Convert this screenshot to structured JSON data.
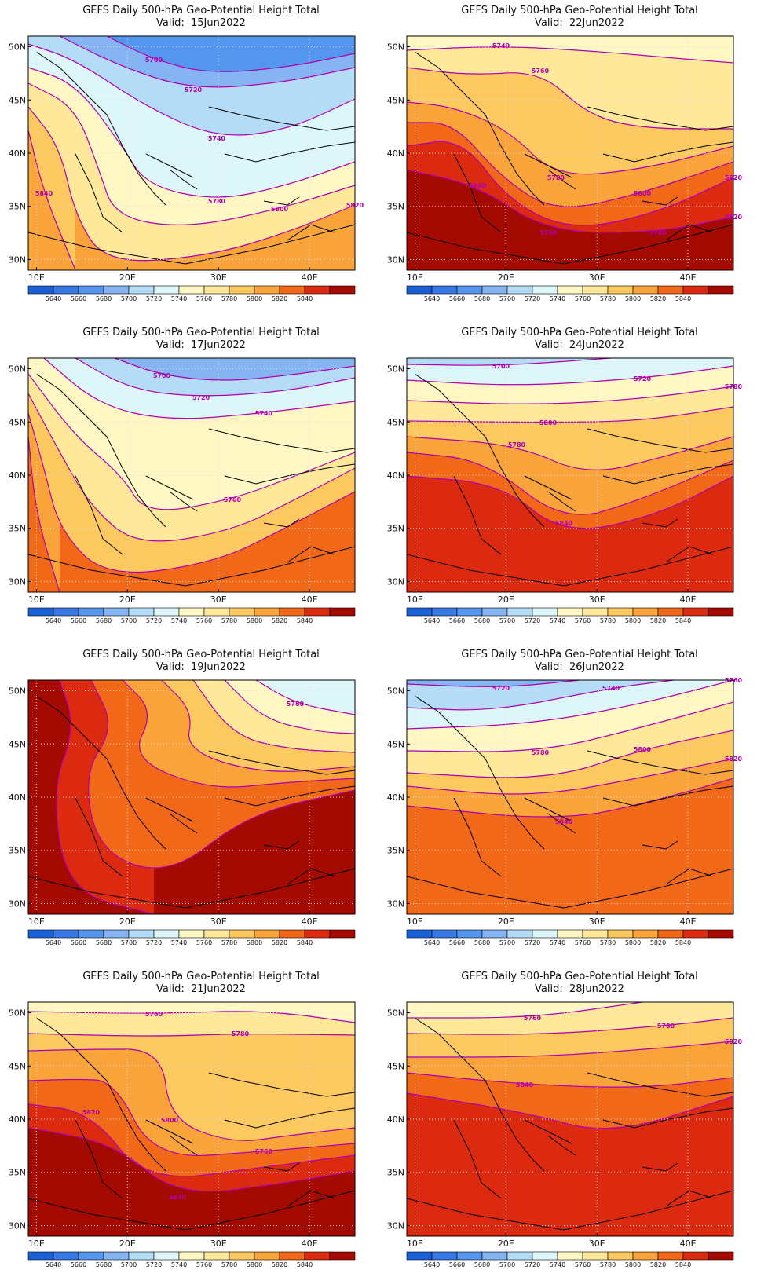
{
  "figure": {
    "colorbar": {
      "levels": [
        "5640",
        "5660",
        "5680",
        "5700",
        "5720",
        "5740",
        "5760",
        "5780",
        "5800",
        "5820",
        "5840"
      ],
      "colors": [
        "#1a60d6",
        "#3778e4",
        "#5596ee",
        "#86b4f2",
        "#b4dcf6",
        "#ddf6fa",
        "#fff8c4",
        "#ffe89a",
        "#fcc860",
        "#f8a43a",
        "#f06818",
        "#dc2a10",
        "#a50a00"
      ]
    },
    "axes": {
      "lon_labels": [
        "10E",
        "20E",
        "30E",
        "40E"
      ],
      "lat_labels": [
        "50N",
        "45N",
        "40N",
        "35N",
        "30N"
      ]
    },
    "contour_color": "#b000b0",
    "panels": [
      {
        "title": "GEFS Daily 500-hPa Geo-Potential Height Total",
        "valid": "Valid:  15Jun2022",
        "contour_labels": [
          "5700",
          "5720",
          "5740",
          "5780",
          "5800",
          "5820",
          "5840"
        ]
      },
      {
        "title": "GEFS Daily 500-hPa Geo-Potential Height Total",
        "valid": "Valid:  22Jun2022",
        "contour_labels": [
          "5740",
          "5760",
          "5780",
          "5800",
          "5820",
          "5760",
          "5780",
          "5820",
          "5840"
        ]
      },
      {
        "title": "GEFS Daily 500-hPa Geo-Potential Height Total",
        "valid": "Valid:  17Jun2022",
        "contour_labels": [
          "5700",
          "5720",
          "5740",
          "5760"
        ]
      },
      {
        "title": "GEFS Daily 500-hPa Geo-Potential Height Total",
        "valid": "Valid:  24Jun2022",
        "contour_labels": [
          "5700",
          "5720",
          "5780",
          "5800",
          "5780",
          "5840"
        ]
      },
      {
        "title": "GEFS Daily 500-hPa Geo-Potential Height Total",
        "valid": "Valid:  19Jun2022",
        "contour_labels": [
          "5760"
        ]
      },
      {
        "title": "GEFS Daily 500-hPa Geo-Potential Height Total",
        "valid": "Valid:  26Jun2022",
        "contour_labels": [
          "5720",
          "5740",
          "5760",
          "5780",
          "5800",
          "5820",
          "5840"
        ]
      },
      {
        "title": "GEFS Daily 500-hPa Geo-Potential Height Total",
        "valid": "Valid:  21Jun2022",
        "contour_labels": [
          "5760",
          "5780",
          "5800",
          "5760",
          "5820",
          "5840"
        ]
      },
      {
        "title": "GEFS Daily 500-hPa Geo-Potential Height Total",
        "valid": "Valid:  28Jun2022",
        "contour_labels": [
          "5760",
          "5780",
          "5820",
          "5840"
        ]
      }
    ]
  }
}
